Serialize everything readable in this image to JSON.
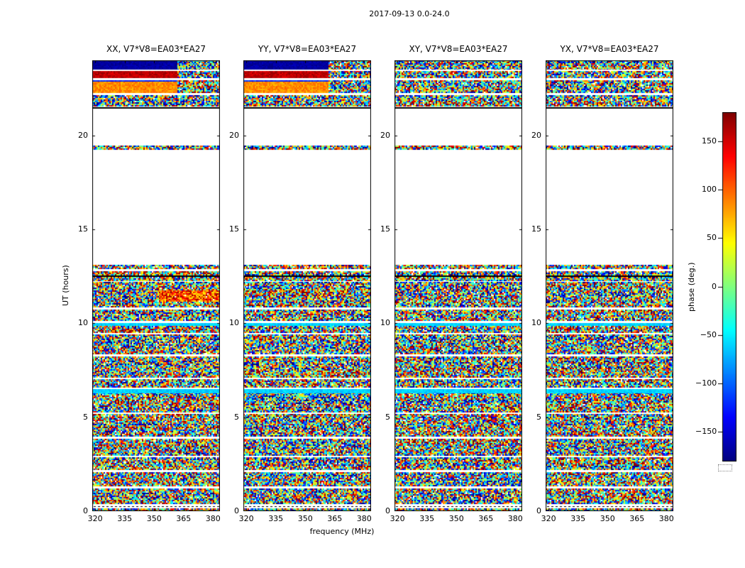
{
  "chart_data": {
    "type": "heatmap",
    "figure_title": "2017-09-13 0.0-24.0",
    "xlabel": "frequency (MHz)",
    "ylabel": "UT (hours)",
    "colorbar_label": "phase (deg.)",
    "colormap": "jet",
    "x_range": [
      318.5,
      383.5
    ],
    "x_ticks": [
      320,
      335,
      350,
      365,
      380
    ],
    "y_range": [
      0,
      24
    ],
    "y_ticks": [
      0,
      5,
      10,
      15,
      20
    ],
    "colorbar_range": [
      -180,
      180
    ],
    "colorbar_ticks": [
      {
        "value": 150,
        "label": "150"
      },
      {
        "value": 100,
        "label": "100"
      },
      {
        "value": 50,
        "label": "50"
      },
      {
        "value": 0,
        "label": "0"
      },
      {
        "value": -50,
        "label": "−50"
      },
      {
        "value": -100,
        "label": "−100"
      },
      {
        "value": -150,
        "label": "−150"
      }
    ],
    "freq_split_mhz": 362,
    "dashed_line_t": 0.25,
    "panels": [
      {
        "title": "XX, V7*V8=EA03*EA27",
        "band_set": "parallel",
        "patches": [
          {
            "t0": 11.15,
            "t1": 11.8,
            "f0": 352,
            "f1": 384
          }
        ]
      },
      {
        "title": "YY, V7*V8=EA03*EA27",
        "band_set": "parallel",
        "patches": []
      },
      {
        "title": "XY, V7*V8=EA03*EA27",
        "band_set": "cross",
        "patches": []
      },
      {
        "title": "YX, V7*V8=EA03*EA27",
        "band_set": "cross",
        "patches": []
      }
    ],
    "bands_common": [
      {
        "t0": 0.0,
        "t1": 0.14,
        "kind": "noise"
      },
      {
        "t0": 0.14,
        "t1": 0.42,
        "kind": "white"
      },
      {
        "t0": 0.42,
        "t1": 1.2,
        "kind": "noise"
      },
      {
        "t0": 1.2,
        "t1": 1.32,
        "kind": "white"
      },
      {
        "t0": 1.32,
        "t1": 2.08,
        "kind": "noise"
      },
      {
        "t0": 2.08,
        "t1": 2.2,
        "kind": "white"
      },
      {
        "t0": 2.2,
        "t1": 2.88,
        "kind": "noise"
      },
      {
        "t0": 2.88,
        "t1": 2.98,
        "kind": "white"
      },
      {
        "t0": 2.98,
        "t1": 3.86,
        "kind": "noise"
      },
      {
        "t0": 3.86,
        "t1": 3.96,
        "kind": "white"
      },
      {
        "t0": 3.96,
        "t1": 5.16,
        "kind": "noise"
      },
      {
        "t0": 5.16,
        "t1": 5.28,
        "kind": "white"
      },
      {
        "t0": 5.28,
        "t1": 6.32,
        "kind": "noise"
      },
      {
        "t0": 6.32,
        "t1": 6.5,
        "kind": "solid",
        "value": -60,
        "jitter": 12
      },
      {
        "t0": 6.5,
        "t1": 6.62,
        "kind": "white"
      },
      {
        "t0": 6.62,
        "t1": 7.04,
        "kind": "noise"
      },
      {
        "t0": 7.04,
        "t1": 7.12,
        "kind": "white"
      },
      {
        "t0": 7.12,
        "t1": 8.25,
        "kind": "noise"
      },
      {
        "t0": 8.25,
        "t1": 8.38,
        "kind": "white"
      },
      {
        "t0": 8.38,
        "t1": 9.4,
        "kind": "noise"
      },
      {
        "t0": 9.4,
        "t1": 9.5,
        "kind": "white"
      },
      {
        "t0": 9.5,
        "t1": 9.88,
        "kind": "noise"
      },
      {
        "t0": 9.88,
        "t1": 10.02,
        "kind": "solid",
        "value": -60,
        "jitter": 12
      },
      {
        "t0": 10.02,
        "t1": 10.12,
        "kind": "white"
      },
      {
        "t0": 10.12,
        "t1": 10.72,
        "kind": "noise"
      },
      {
        "t0": 10.72,
        "t1": 10.85,
        "kind": "white"
      },
      {
        "t0": 10.85,
        "t1": 12.2,
        "kind": "noise"
      },
      {
        "t0": 12.2,
        "t1": 12.3,
        "kind": "white"
      },
      {
        "t0": 12.3,
        "t1": 12.78,
        "kind": "noise"
      },
      {
        "t0": 12.48,
        "t1": 12.56,
        "kind": "black_line"
      },
      {
        "t0": 12.78,
        "t1": 12.88,
        "kind": "white"
      },
      {
        "t0": 12.88,
        "t1": 13.12,
        "kind": "noise"
      },
      {
        "t0": 13.12,
        "t1": 19.28,
        "kind": "white"
      },
      {
        "t0": 19.28,
        "t1": 19.45,
        "kind": "noise"
      },
      {
        "t0": 19.45,
        "t1": 21.44,
        "kind": "white"
      },
      {
        "t0": 21.44,
        "t1": 21.52,
        "kind": "black_line"
      }
    ],
    "bands_top_parallel": [
      {
        "t0": 23.52,
        "t1": 24.0,
        "kind": "split",
        "value": -168,
        "jitter": 10
      },
      {
        "t0": 23.45,
        "t1": 23.52,
        "kind": "white"
      },
      {
        "t0": 23.05,
        "t1": 23.45,
        "kind": "split",
        "value": 158,
        "jitter": 16
      },
      {
        "t0": 22.95,
        "t1": 23.05,
        "kind": "white"
      },
      {
        "t0": 22.88,
        "t1": 22.95,
        "kind": "split",
        "value": -120,
        "jitter": 14
      },
      {
        "t0": 22.25,
        "t1": 22.88,
        "kind": "split",
        "value": 85,
        "jitter": 18
      },
      {
        "t0": 22.16,
        "t1": 22.25,
        "kind": "white"
      },
      {
        "t0": 21.55,
        "t1": 22.16,
        "kind": "noise"
      }
    ],
    "bands_top_cross": [
      {
        "t0": 23.52,
        "t1": 24.0,
        "kind": "noise"
      },
      {
        "t0": 23.45,
        "t1": 23.52,
        "kind": "white"
      },
      {
        "t0": 23.05,
        "t1": 23.45,
        "kind": "noise"
      },
      {
        "t0": 22.95,
        "t1": 23.05,
        "kind": "white"
      },
      {
        "t0": 22.25,
        "t1": 22.95,
        "kind": "noise"
      },
      {
        "t0": 22.16,
        "t1": 22.25,
        "kind": "white"
      },
      {
        "t0": 21.55,
        "t1": 22.16,
        "kind": "noise"
      }
    ],
    "colors": {
      "background": "#ffffff",
      "frame": "#000000",
      "text": "#000000"
    }
  }
}
